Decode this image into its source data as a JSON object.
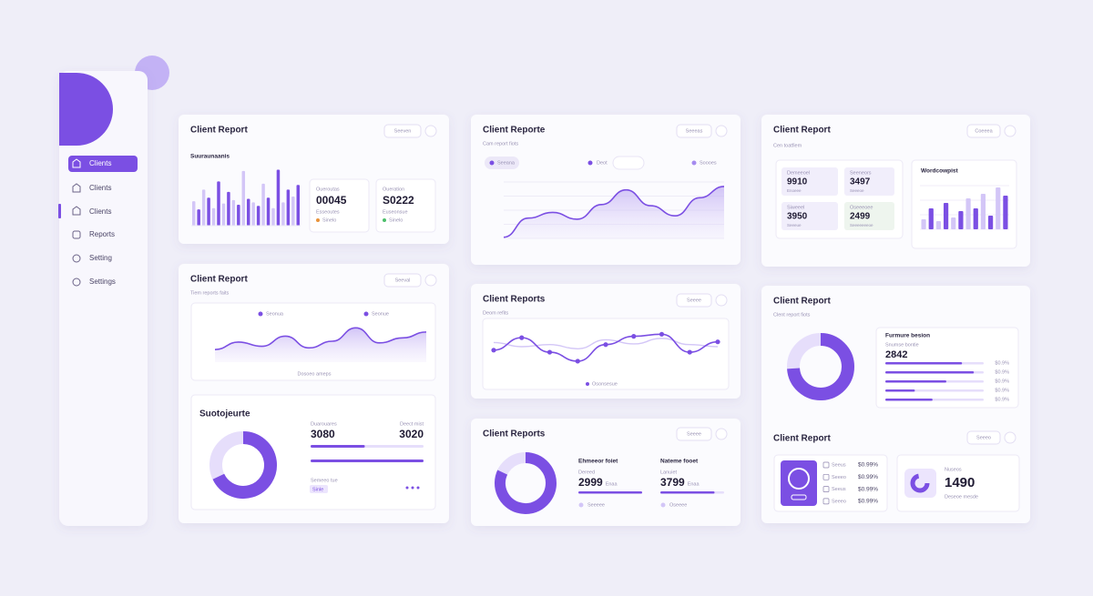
{
  "colors": {
    "primary": "#7b4fe3",
    "light": "#d3c6f7",
    "track": "#e6defb"
  },
  "sidebar": {
    "items": [
      "Clients",
      "Clients",
      "Clients",
      "Reports",
      "Setting",
      "Settings"
    ]
  },
  "card_a": {
    "title": "Client Report",
    "button": "Seeven",
    "chart_title": "Suuraunaanis",
    "bars": {
      "ylim": [
        0,
        100
      ],
      "values": [
        42,
        28,
        62,
        48,
        30,
        76,
        38,
        58,
        44,
        36,
        94,
        46,
        40,
        34,
        72,
        48,
        30,
        96,
        40,
        62,
        50,
        70
      ]
    },
    "stats": [
      {
        "label": "Oueroutas",
        "value": "00045",
        "note": "Esseoutes",
        "legend": "Sinelo"
      },
      {
        "label": "Oueration",
        "value": "S0222",
        "note": "Euseonsue",
        "legend": "Sinelo"
      }
    ]
  },
  "card_b": {
    "title": "Client Report",
    "button": "Seeval",
    "subtitle": "Tiem reports faits",
    "line": {
      "legend": [
        "Seonua",
        "Seonue"
      ],
      "ylim": [
        0,
        100
      ],
      "values": [
        30,
        48,
        38,
        62,
        34,
        50,
        82,
        46,
        58,
        72
      ],
      "caption": "Dosoeo ameps"
    },
    "panel": {
      "title": "Suotojeurte",
      "donut": 68,
      "stats": [
        {
          "label": "Duarouares",
          "value": "3080",
          "bar": 48
        },
        {
          "label": "Deect mist",
          "value": "3020",
          "bar": 100
        }
      ],
      "note": "Semeeo tue",
      "tag": "Sinle"
    }
  },
  "card_d": {
    "title": "Client Reporte",
    "button": "Seeeas",
    "subtitle": "Cam report fiots",
    "tabs": [
      "Seeana",
      "Deot",
      "Soooes"
    ],
    "area": {
      "ylim": [
        0,
        100
      ],
      "values": [
        2,
        36,
        46,
        34,
        60,
        86,
        58,
        40,
        72,
        92
      ]
    }
  },
  "card_e": {
    "title": "Client Reports",
    "button": "Seeee",
    "subtitle": "Deom refits",
    "caption": "Osonsesue",
    "chart": {
      "ylim": [
        0,
        100
      ],
      "series": [
        {
          "values": [
            40,
            76,
            34,
            8,
            56,
            80,
            86,
            34,
            64
          ]
        },
        {
          "values": [
            62,
            50,
            56,
            44,
            70,
            58,
            74,
            56,
            50
          ]
        }
      ]
    }
  },
  "card_f": {
    "title": "Client Reports",
    "button": "Seeee",
    "donut": 82,
    "stats": [
      {
        "label": "Ehmeeor foiet",
        "note": "Dereed",
        "value": "2999",
        "unit": "Enaa",
        "bar": 100,
        "legend": "Seeeee"
      },
      {
        "label": "Nateme fooet",
        "note": "Lanuiet",
        "value": "3799",
        "unit": "Enaa",
        "bar": 85,
        "legend": "Oseeee"
      }
    ]
  },
  "card_g": {
    "title": "Client Report",
    "button": "Coeeea",
    "subtitle": "Cen toatfiem",
    "stats": [
      {
        "label": "Demeeoel",
        "value": "9910",
        "note": "Enoeee"
      },
      {
        "label": "Seeneors",
        "value": "3497",
        "note": "Seeeoe"
      },
      {
        "label": "Siweeel",
        "value": "3950",
        "note": "Seeeue"
      },
      {
        "label": "Oseeeoee",
        "value": "2499",
        "note": "Seeeeeeeoe"
      }
    ],
    "bar_title": "Wordcowpist",
    "bars": {
      "ylim": [
        0,
        100
      ],
      "values": [
        22,
        46,
        18,
        58,
        26,
        40,
        68,
        46,
        78,
        30,
        92,
        74
      ]
    }
  },
  "card_h": {
    "title": "Client Report",
    "subtitle": "Clent report fiots",
    "donut": 74,
    "list": {
      "title": "Furmure besion",
      "sub": "Snumse bontie",
      "value": "2842",
      "rows": [
        {
          "bar": 78,
          "value": "$0.9%"
        },
        {
          "bar": 90,
          "value": "$0.9%"
        },
        {
          "bar": 62,
          "value": "$0.9%"
        },
        {
          "bar": 30,
          "value": "$0.9%"
        },
        {
          "bar": 48,
          "value": "$0.9%"
        }
      ]
    },
    "section_title": "Client Report",
    "button": "Seeeo",
    "rows": [
      {
        "label": "Seeus",
        "value": "$0.99%"
      },
      {
        "label": "Seeeo",
        "value": "$0.99%"
      },
      {
        "label": "Seeus",
        "value": "$0.99%"
      },
      {
        "label": "Seeeo",
        "value": "$0.99%"
      }
    ],
    "kpi": {
      "label": "Nuseos",
      "value": "1490",
      "note": "Deseoe mesde"
    }
  }
}
